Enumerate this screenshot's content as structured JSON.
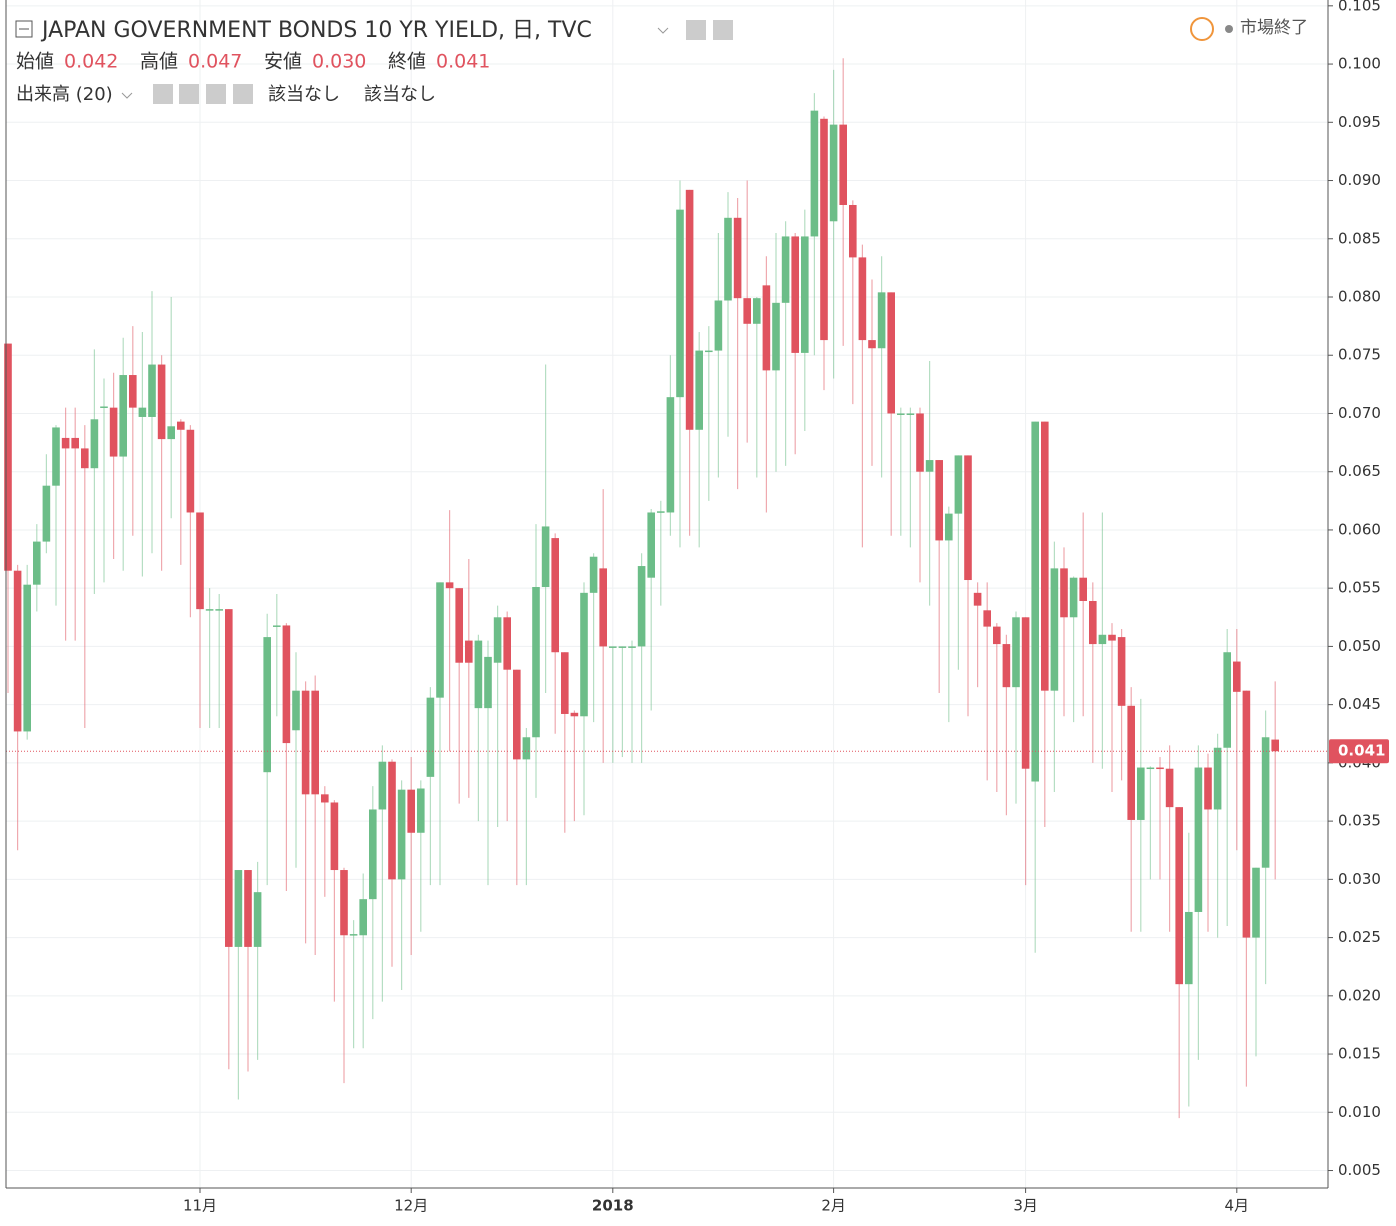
{
  "chart_data": {
    "type": "candlestick",
    "title": "JAPAN GOVERNMENT BONDS 10 YR YIELD, 日, TVC",
    "ohlc_legend": [
      {
        "label": "始値",
        "value": "0.042"
      },
      {
        "label": "高値",
        "value": "0.047"
      },
      {
        "label": "安値",
        "value": "0.030"
      },
      {
        "label": "終値",
        "value": "0.041"
      }
    ],
    "indicator": {
      "name": "出来高 (20)",
      "values": [
        "該当なし",
        "該当なし"
      ]
    },
    "status": "市場終了",
    "up_color": "#6cbd88",
    "down_color": "#e0535f",
    "categories": [
      null,
      null,
      null,
      null,
      null,
      null,
      null,
      null,
      null,
      null,
      null,
      null,
      null,
      null,
      null,
      null,
      null,
      null,
      null,
      null,
      "11月",
      null,
      null,
      null,
      null,
      null,
      null,
      null,
      null,
      null,
      null,
      null,
      null,
      null,
      null,
      null,
      null,
      null,
      null,
      null,
      null,
      null,
      "12月",
      null,
      null,
      null,
      null,
      null,
      null,
      null,
      null,
      null,
      null,
      null,
      null,
      null,
      null,
      null,
      null,
      null,
      null,
      null,
      null,
      "2018",
      null,
      null,
      null,
      null,
      null,
      null,
      null,
      null,
      null,
      null,
      null,
      null,
      null,
      null,
      null,
      null,
      null,
      null,
      null,
      null,
      null,
      null,
      "2月",
      null,
      null,
      null,
      null,
      null,
      null,
      null,
      null,
      null,
      null,
      null,
      null,
      null,
      null,
      null,
      null,
      null,
      null,
      null,
      "3月",
      null,
      null,
      null,
      null,
      null,
      null,
      null,
      null,
      null,
      null,
      null,
      null,
      null,
      null,
      null,
      null,
      null,
      null,
      null,
      null,
      null,
      "4月",
      null,
      null,
      null,
      null
    ],
    "open": [
      0.076,
      0.0565,
      0.0427,
      0.0553,
      0.059,
      0.0638,
      0.0679,
      0.0679,
      0.067,
      0.0653,
      0.0705,
      0.0705,
      0.0663,
      0.0733,
      0.0697,
      0.0697,
      0.0742,
      0.0678,
      0.0693,
      0.0686,
      0.0615,
      0.0532,
      0.0532,
      0.0532,
      0.0242,
      0.0308,
      0.0242,
      0.0392,
      0.0518,
      0.0518,
      0.0428,
      0.0462,
      0.0462,
      0.0373,
      0.0366,
      0.0308,
      0.0252,
      0.0252,
      0.0283,
      0.036,
      0.0401,
      0.03,
      0.0377,
      0.034,
      0.0388,
      0.0456,
      0.0555,
      0.055,
      0.0505,
      0.0447,
      0.0447,
      0.0486,
      0.0525,
      0.048,
      0.0403,
      0.0422,
      0.0551,
      0.0593,
      0.0495,
      0.0443,
      0.044,
      0.0546,
      0.0567,
      0.05,
      0.05,
      0.05,
      0.05,
      0.0559,
      0.0615,
      0.0615,
      0.0714,
      0.0892,
      0.0686,
      0.0754,
      0.0754,
      0.0797,
      0.0868,
      0.0799,
      0.0777,
      0.081,
      0.0737,
      0.0795,
      0.0852,
      0.0752,
      0.0852,
      0.0953,
      0.0865,
      0.0948,
      0.0879,
      0.0834,
      0.0763,
      0.0756,
      0.0804,
      0.07,
      0.07,
      0.07,
      0.065,
      0.066,
      0.0591,
      0.0614,
      0.0664,
      0.0546,
      0.0531,
      0.0517,
      0.0502,
      0.0465,
      0.0525,
      0.0384,
      0.0693,
      0.0462,
      0.0567,
      0.0525,
      0.0559,
      0.0539,
      0.0502,
      0.051,
      0.0508,
      0.0449,
      0.0351,
      0.0396,
      0.0396,
      0.0395,
      0.0362,
      0.021,
      0.0272,
      0.0396,
      0.036,
      0.0413,
      0.0487,
      0.0462,
      0.025,
      0.031,
      0.042
    ],
    "high": [
      0.076,
      0.057,
      0.057,
      0.0605,
      0.0665,
      0.069,
      0.0705,
      0.0705,
      0.069,
      0.0755,
      0.073,
      0.0735,
      0.0765,
      0.0775,
      0.077,
      0.0805,
      0.075,
      0.08,
      0.0695,
      0.069,
      0.0615,
      0.055,
      0.0545,
      0.0532,
      0.0308,
      0.0308,
      0.0315,
      0.0528,
      0.0545,
      0.052,
      0.0495,
      0.047,
      0.0475,
      0.038,
      0.0368,
      0.031,
      0.0265,
      0.0305,
      0.038,
      0.0415,
      0.0403,
      0.0385,
      0.0405,
      0.0385,
      0.0465,
      0.0555,
      0.0617,
      0.055,
      0.0575,
      0.051,
      0.0505,
      0.0535,
      0.053,
      0.048,
      0.043,
      0.0605,
      0.0742,
      0.0597,
      0.0495,
      0.0445,
      0.0555,
      0.058,
      0.0635,
      0.05,
      0.05,
      0.0505,
      0.058,
      0.0618,
      0.0625,
      0.075,
      0.09,
      0.0892,
      0.077,
      0.0775,
      0.0855,
      0.089,
      0.0885,
      0.09,
      0.08,
      0.0835,
      0.0855,
      0.0865,
      0.0855,
      0.0875,
      0.0975,
      0.0955,
      0.0995,
      0.1005,
      0.0883,
      0.0845,
      0.0815,
      0.0835,
      0.0804,
      0.0705,
      0.0705,
      0.0705,
      0.0745,
      0.066,
      0.062,
      0.0664,
      0.0664,
      0.0555,
      0.0555,
      0.052,
      0.051,
      0.053,
      0.0525,
      0.0693,
      0.0693,
      0.059,
      0.0585,
      0.056,
      0.0615,
      0.0555,
      0.0615,
      0.052,
      0.0515,
      0.0465,
      0.0455,
      0.0397,
      0.0405,
      0.0415,
      0.0362,
      0.034,
      0.0415,
      0.0408,
      0.0425,
      0.0515,
      0.0515,
      0.0462,
      0.031,
      0.0445,
      0.047
    ],
    "low": [
      0.046,
      0.0325,
      0.042,
      0.053,
      0.058,
      0.0535,
      0.0505,
      0.0505,
      0.043,
      0.0545,
      0.0555,
      0.0575,
      0.0565,
      0.0595,
      0.056,
      0.058,
      0.0565,
      0.061,
      0.057,
      0.0525,
      0.043,
      0.043,
      0.043,
      0.0137,
      0.0111,
      0.0135,
      0.0145,
      0.0295,
      0.044,
      0.029,
      0.031,
      0.0245,
      0.0235,
      0.0285,
      0.0195,
      0.0125,
      0.0155,
      0.0155,
      0.018,
      0.0195,
      0.0225,
      0.0205,
      0.0235,
      0.0255,
      0.0295,
      0.0295,
      0.041,
      0.0365,
      0.037,
      0.035,
      0.0295,
      0.0345,
      0.035,
      0.0295,
      0.0295,
      0.037,
      0.046,
      0.0425,
      0.034,
      0.035,
      0.0355,
      0.0435,
      0.04,
      0.04,
      0.0405,
      0.04,
      0.04,
      0.0445,
      0.0535,
      0.0595,
      0.0585,
      0.0595,
      0.0585,
      0.0625,
      0.0645,
      0.068,
      0.0635,
      0.0675,
      0.0645,
      0.0615,
      0.065,
      0.0655,
      0.0665,
      0.0685,
      0.075,
      0.072,
      0.073,
      0.0758,
      0.0708,
      0.0585,
      0.0655,
      0.0645,
      0.0595,
      0.0595,
      0.0585,
      0.0555,
      0.0535,
      0.046,
      0.0435,
      0.048,
      0.044,
      0.0465,
      0.0385,
      0.0375,
      0.0355,
      0.0365,
      0.0295,
      0.0237,
      0.0345,
      0.0375,
      0.044,
      0.0435,
      0.044,
      0.04,
      0.0395,
      0.0375,
      0.0385,
      0.0255,
      0.0255,
      0.03,
      0.03,
      0.0255,
      0.0095,
      0.0105,
      0.0145,
      0.0255,
      0.025,
      0.026,
      0.0325,
      0.0122,
      0.0148,
      0.021,
      0.03
    ],
    "close": [
      0.0565,
      0.0427,
      0.0553,
      0.059,
      0.0638,
      0.0688,
      0.067,
      0.067,
      0.0653,
      0.0695,
      0.0706,
      0.0663,
      0.0733,
      0.0705,
      0.0705,
      0.0742,
      0.0678,
      0.0689,
      0.0686,
      0.0615,
      0.0532,
      0.0532,
      0.0532,
      0.0242,
      0.0308,
      0.0242,
      0.0289,
      0.0508,
      0.0518,
      0.0417,
      0.0462,
      0.0373,
      0.0373,
      0.0366,
      0.0308,
      0.0252,
      0.0253,
      0.0283,
      0.036,
      0.0401,
      0.03,
      0.0377,
      0.034,
      0.0378,
      0.0456,
      0.0555,
      0.055,
      0.0486,
      0.0486,
      0.0505,
      0.0491,
      0.0525,
      0.048,
      0.0403,
      0.0422,
      0.0551,
      0.0603,
      0.0495,
      0.0442,
      0.044,
      0.0546,
      0.0577,
      0.05,
      0.05,
      0.05,
      0.05,
      0.0569,
      0.0615,
      0.0616,
      0.0714,
      0.0875,
      0.0686,
      0.0754,
      0.0754,
      0.0797,
      0.0868,
      0.0799,
      0.0777,
      0.0799,
      0.0737,
      0.0795,
      0.0852,
      0.0752,
      0.0852,
      0.096,
      0.0763,
      0.0948,
      0.0879,
      0.0834,
      0.0763,
      0.0756,
      0.0804,
      0.07,
      0.07,
      0.07,
      0.065,
      0.066,
      0.0591,
      0.0614,
      0.0664,
      0.0557,
      0.0535,
      0.0517,
      0.0502,
      0.0465,
      0.0525,
      0.0395,
      0.0693,
      0.0462,
      0.0567,
      0.0525,
      0.0559,
      0.0539,
      0.0502,
      0.051,
      0.0505,
      0.0449,
      0.0351,
      0.0396,
      0.0396,
      0.0395,
      0.0362,
      0.021,
      0.0272,
      0.0396,
      0.036,
      0.0413,
      0.0495,
      0.0461,
      0.025,
      0.031,
      0.0422,
      0.041
    ],
    "ylim": [
      0.0035,
      0.1055
    ],
    "yticks": [
      0.005,
      {
        "value": 0.01,
        "label": "0.010"
      },
      0.015,
      {
        "value": 0.02,
        "label": "0.020"
      },
      0.025,
      {
        "value": 0.03,
        "label": "0.030"
      },
      0.035,
      {
        "value": 0.04,
        "label": "0.040"
      },
      0.045,
      {
        "value": 0.05,
        "label": "0.050"
      },
      0.055,
      {
        "value": 0.06,
        "label": "0.060"
      },
      0.065,
      {
        "value": 0.07,
        "label": "0.070"
      },
      0.075,
      {
        "value": 0.08,
        "label": "0.080"
      },
      0.085,
      {
        "value": 0.09,
        "label": "0.090"
      },
      0.095,
      {
        "value": 0.1,
        "label": "0.100"
      },
      0.105
    ],
    "grid": true
  }
}
